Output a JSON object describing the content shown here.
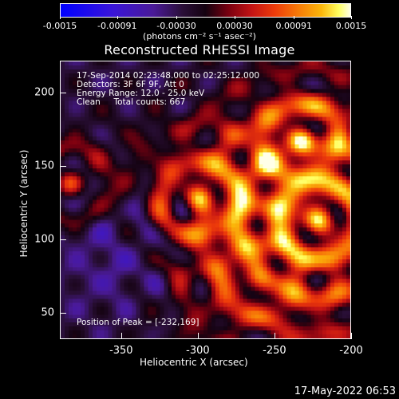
{
  "chart_data": {
    "type": "heatmap",
    "title": "Reconstructed RHESSI Image",
    "xlabel": "Heliocentric X (arcsec)",
    "ylabel": "Heliocentric Y (arcsec)",
    "xlim": [
      -390,
      -200
    ],
    "ylim": [
      32,
      222
    ],
    "x_ticks": [
      "-350",
      "-300",
      "-250",
      "-200"
    ],
    "y_ticks": [
      "50",
      "100",
      "150",
      "200"
    ],
    "colorbar": {
      "ticks": [
        "-0.0015",
        "-0.00091",
        "-0.00030",
        "0.00030",
        "0.00091",
        "0.0015"
      ],
      "range": [
        -0.0015,
        0.0015
      ],
      "unit_label": "(photons cm⁻² s⁻¹ asec⁻²)"
    },
    "annotations": {
      "time_range": "17-Sep-2014 02:23:48.000 to 02:25:12.000",
      "detectors": "Detectors: 3F 6F 9F, Att 0",
      "energy": "Energy Range: 12.0 - 25.0 keV",
      "method": "Clean     Total counts: 667",
      "peak": "Position of Peak = [-232,169]"
    },
    "colors": {
      "negative": "#2a10a0",
      "neutral": "#1a0510",
      "positive": "#ff4a10",
      "max": "#ffffe0"
    }
  },
  "footer": {
    "timestamp": "17-May-2022 06:53"
  }
}
